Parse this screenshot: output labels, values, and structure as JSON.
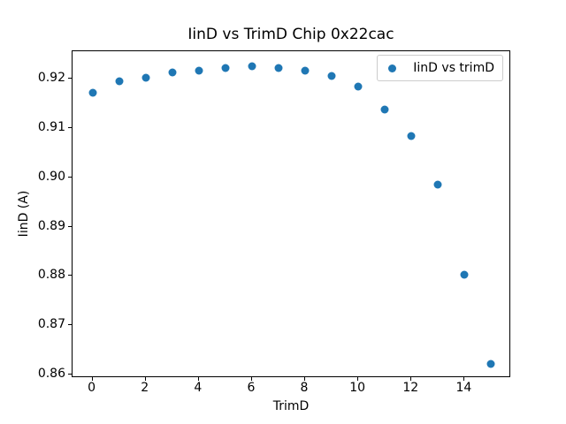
{
  "figure": {
    "background": "#ffffff",
    "text_color": "#000000",
    "legend_border_color": "#cccccc"
  },
  "chart_data": {
    "type": "scatter",
    "title": "IinD vs TrimD Chip 0x22cac",
    "xlabel": "TrimD",
    "ylabel": "IinD (A)",
    "series": [
      {
        "name": "IinD vs trimD",
        "color": "#1f77b4",
        "x": [
          0,
          1,
          2,
          3,
          4,
          5,
          6,
          7,
          8,
          9,
          10,
          11,
          12,
          13,
          14,
          15
        ],
        "y": [
          0.9172,
          0.9195,
          0.9202,
          0.9213,
          0.9217,
          0.9222,
          0.9226,
          0.9222,
          0.9216,
          0.9205,
          0.9184,
          0.9138,
          0.9084,
          0.8986,
          0.8803,
          0.8621
        ]
      }
    ],
    "xlim": [
      -0.75,
      15.75
    ],
    "ylim": [
      0.8593,
      0.9256
    ],
    "xticks": [
      0,
      2,
      4,
      6,
      8,
      10,
      12,
      14
    ],
    "yticks": [
      0.86,
      0.87,
      0.88,
      0.89,
      0.9,
      0.91,
      0.92
    ],
    "ytick_decimals": 2,
    "grid": false,
    "legend_position": "upper right"
  }
}
